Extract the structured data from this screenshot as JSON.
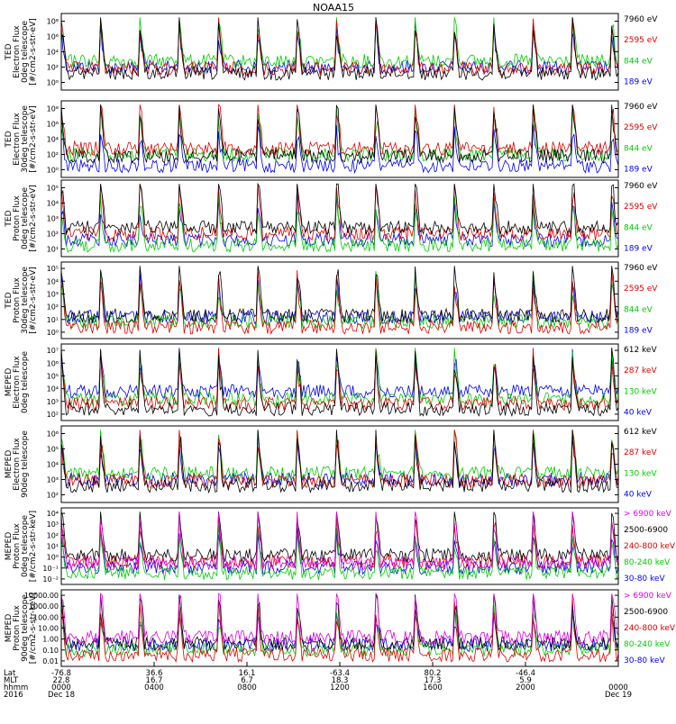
{
  "title": "NOAA15",
  "chart_data": [
    {
      "type": "line",
      "ylabel": [
        "TED",
        "Electron Flux",
        "0deg telescope",
        "[#/cm2-s-str-eV]"
      ],
      "yscale": "log",
      "ytick_labels": [
        "10⁰",
        "10²",
        "10⁴",
        "10⁶",
        "10⁸"
      ],
      "legend": [
        {
          "name": "7960 eV",
          "color": "#000000"
        },
        {
          "name": "2595 eV",
          "color": "#dd0000"
        },
        {
          "name": "844 eV",
          "color": "#00cc00"
        },
        {
          "name": "189 eV",
          "color": "#0000ee"
        }
      ]
    },
    {
      "type": "line",
      "ylabel": [
        "TED",
        "Electron Flux",
        "30deg telescope",
        "[#/cm2-s-str-eV]"
      ],
      "yscale": "log",
      "ytick_labels": [
        "10⁰",
        "10²",
        "10⁴",
        "10⁶",
        "10⁸"
      ],
      "legend": [
        {
          "name": "7960 eV",
          "color": "#000000"
        },
        {
          "name": "2595 eV",
          "color": "#dd0000"
        },
        {
          "name": "844 eV",
          "color": "#00cc00"
        },
        {
          "name": "189 eV",
          "color": "#0000ee"
        }
      ]
    },
    {
      "type": "line",
      "ylabel": [
        "TED",
        "Proton Flux",
        "0deg telescope",
        "[#/cm2-s-str-eV]"
      ],
      "yscale": "log",
      "ytick_labels": [
        "10¹",
        "10²",
        "10³",
        "10⁴",
        "10⁵"
      ],
      "legend": [
        {
          "name": "7960 eV",
          "color": "#000000"
        },
        {
          "name": "2595 eV",
          "color": "#dd0000"
        },
        {
          "name": "844 eV",
          "color": "#00cc00"
        },
        {
          "name": "189 eV",
          "color": "#0000ee"
        }
      ]
    },
    {
      "type": "line",
      "ylabel": [
        "TED",
        "Proton Flux",
        "30deg telescope",
        "[#/cm2-s-str-eV]"
      ],
      "yscale": "log",
      "ytick_labels": [
        "10⁰",
        "10¹",
        "10²",
        "10³",
        "10⁴",
        "10⁵"
      ],
      "legend": [
        {
          "name": "7960 eV",
          "color": "#000000"
        },
        {
          "name": "2595 eV",
          "color": "#dd0000"
        },
        {
          "name": "844 eV",
          "color": "#00cc00"
        },
        {
          "name": "189 eV",
          "color": "#0000ee"
        }
      ]
    },
    {
      "type": "line",
      "ylabel": [
        "MEPED",
        "Electron Flux",
        "0deg telescope"
      ],
      "yscale": "log",
      "ytick_labels": [
        "10²",
        "10³",
        "10⁴",
        "10⁵",
        "10⁶",
        "10⁷"
      ],
      "legend": [
        {
          "name": "612 keV",
          "color": "#000000"
        },
        {
          "name": "287 keV",
          "color": "#dd0000"
        },
        {
          "name": "130 keV",
          "color": "#00cc00"
        },
        {
          "name": "40 keV",
          "color": "#0000ee"
        }
      ]
    },
    {
      "type": "line",
      "ylabel": [
        "MEPED",
        "Electron Flux",
        "90deg telescope"
      ],
      "yscale": "log",
      "ytick_labels": [
        "10²",
        "10³",
        "10⁴",
        "10⁵",
        "10⁶"
      ],
      "legend": [
        {
          "name": "612 keV",
          "color": "#000000"
        },
        {
          "name": "287 keV",
          "color": "#dd0000"
        },
        {
          "name": "130 keV",
          "color": "#00cc00"
        },
        {
          "name": "40 keV",
          "color": "#0000ee"
        }
      ]
    },
    {
      "type": "line",
      "ylabel": [
        "MEPED",
        "Proton Flux",
        "0deg telescope",
        "[#/cm2-s-str-keV]"
      ],
      "yscale": "log",
      "ytick_labels": [
        "10⁻²",
        "10⁻¹",
        "10⁰",
        "10¹",
        "10²",
        "10³",
        "10⁴"
      ],
      "legend": [
        {
          "name": "> 6900 keV",
          "color": "#dd00dd"
        },
        {
          "name": "2500-6900",
          "color": "#000000"
        },
        {
          "name": "240-800 keV",
          "color": "#dd0000"
        },
        {
          "name": "80-240 keV",
          "color": "#00cc00"
        },
        {
          "name": "30-80 keV",
          "color": "#0000ee"
        }
      ]
    },
    {
      "type": "line",
      "ylabel": [
        "MEPED",
        "Proton Flux",
        "90deg telescope",
        "[#/cm2-s-str-keV]"
      ],
      "yscale": "log",
      "ytick_labels": [
        "0.01",
        "0.10",
        "1.00",
        "10.00",
        "100.00",
        "1000.00",
        "10000.00"
      ],
      "legend": [
        {
          "name": "> 6900 keV",
          "color": "#dd00dd"
        },
        {
          "name": "2500-6900",
          "color": "#000000"
        },
        {
          "name": "240-800 keV",
          "color": "#dd0000"
        },
        {
          "name": "80-240 keV",
          "color": "#00cc00"
        },
        {
          "name": "30-80 keV",
          "color": "#0000ee"
        }
      ]
    }
  ],
  "xaxis": {
    "row_labels": [
      "Lat",
      "MLT",
      "hhmm",
      "2016"
    ],
    "columns": [
      {
        "lat": "-76.8",
        "mlt": "22.8",
        "hhmm": "0000",
        "date": "Dec 18"
      },
      {
        "lat": "36.6",
        "mlt": "16.7",
        "hhmm": "0400",
        "date": ""
      },
      {
        "lat": "16.1",
        "mlt": "6.7",
        "hhmm": "0800",
        "date": ""
      },
      {
        "lat": "-63.4",
        "mlt": "18.3",
        "hhmm": "1200",
        "date": ""
      },
      {
        "lat": "80.2",
        "mlt": "17.3",
        "hhmm": "1600",
        "date": ""
      },
      {
        "lat": "-46.4",
        "mlt": "5.9",
        "hhmm": "2000",
        "date": ""
      },
      {
        "lat": "",
        "mlt": "",
        "hhmm": "0000",
        "date": "Dec 19"
      }
    ]
  }
}
